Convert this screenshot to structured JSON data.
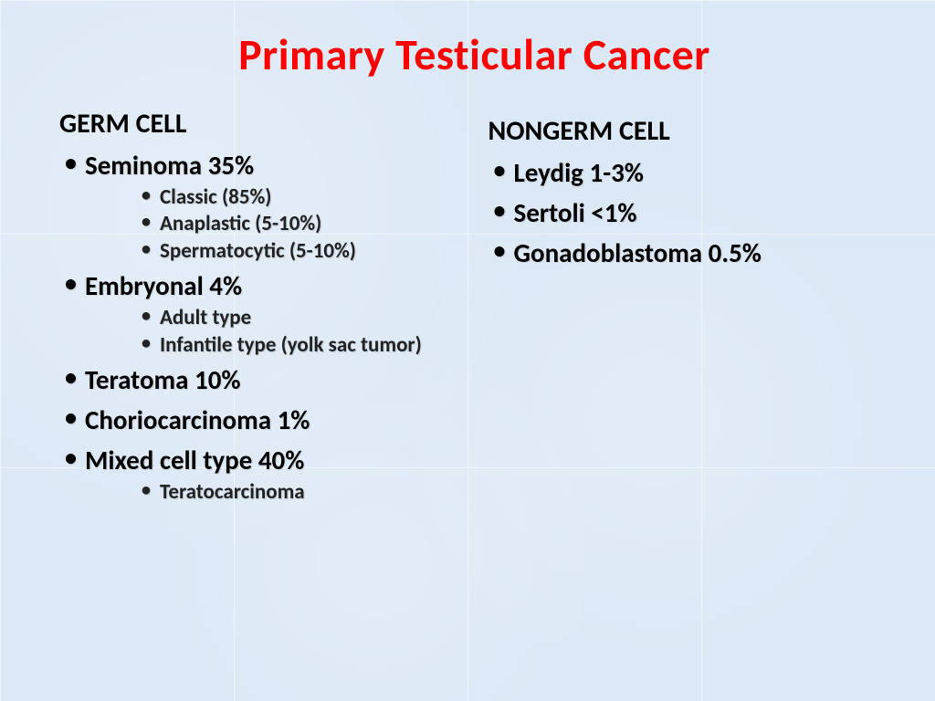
{
  "slide": {
    "title": "Primary Testicular Cancer",
    "title_color": "#ff0000",
    "title_fontsize": 48,
    "background_color": "#dbe8f5",
    "grid_color": "#ffffff",
    "text_color": "#000000",
    "sub_text_color": "#222222",
    "left": {
      "heading": "GERM CELL",
      "items": [
        {
          "label": "Seminoma 35%",
          "sub": [
            "Classic (85%)",
            "Anaplastic (5-10%)",
            "Spermatocytic (5-10%)"
          ]
        },
        {
          "label": "Embryonal 4%",
          "sub": [
            "Adult type",
            "Infantile type (yolk sac tumor)"
          ]
        },
        {
          "label": "Teratoma 10%",
          "sub": []
        },
        {
          "label": "Choriocarcinoma 1%",
          "sub": []
        },
        {
          "label": "Mixed cell type 40%",
          "sub": [
            "Teratocarcinoma"
          ]
        }
      ]
    },
    "right": {
      "heading": "NONGERM CELL",
      "items": [
        {
          "label": "Leydig 1-3%",
          "sub": []
        },
        {
          "label": "Sertoli <1%",
          "sub": []
        },
        {
          "label": "Gonadoblastoma 0.5%",
          "sub": []
        }
      ]
    },
    "typography": {
      "heading_fontsize": 30,
      "lvl1_fontsize": 29,
      "lvl2_fontsize": 23,
      "font_family": "Calibri"
    }
  }
}
